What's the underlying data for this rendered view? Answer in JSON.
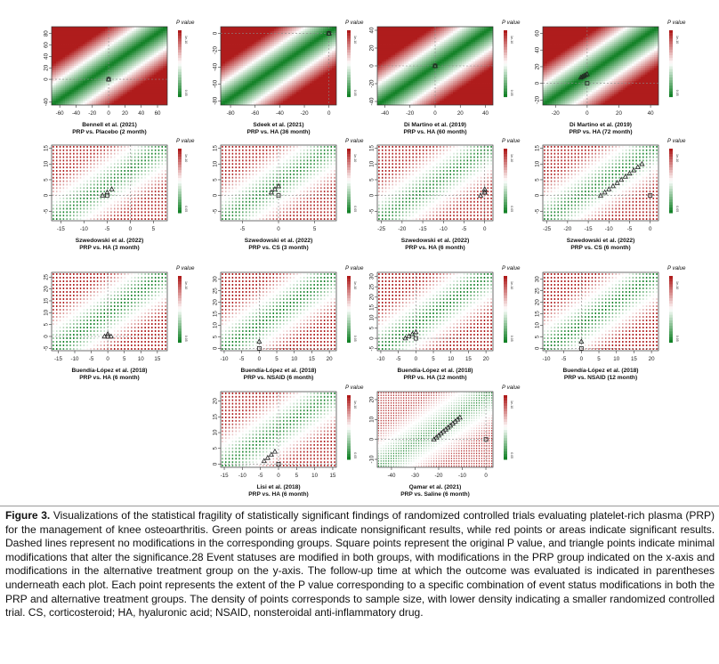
{
  "legend_title": "P value",
  "legend_ticks": {
    "top": "1e-10",
    "bottom": "0.05"
  },
  "chart_data": [
    {
      "type": "heatmap",
      "style": "smooth",
      "title": "Bennell et al. (2021)",
      "subtitle": "PRP vs. Placebo (2 month)",
      "xticks": [
        -60,
        -40,
        -20,
        0,
        20,
        40,
        60
      ],
      "xlim": [
        -70,
        72
      ],
      "yticks": [
        -40,
        0,
        20,
        40,
        60,
        80
      ],
      "ylim": [
        -45,
        92
      ],
      "band_dir": 1,
      "band_w": 0.08,
      "sq": [
        0,
        0
      ],
      "tri": [
        [
          0,
          0
        ]
      ]
    },
    {
      "type": "heatmap",
      "style": "smooth",
      "title": "Sdeek et al. (2021)",
      "subtitle": "PRP vs. HA (36 month)",
      "xticks": [
        -80,
        -60,
        -40,
        -20,
        0
      ],
      "xlim": [
        -88,
        6
      ],
      "yticks": [
        -80,
        -60,
        -40,
        -20,
        0
      ],
      "ylim": [
        -85,
        8
      ],
      "band_dir": 1,
      "band_w": 0.08,
      "sq": [
        0,
        0
      ],
      "tri": [
        [
          0,
          0
        ]
      ]
    },
    {
      "type": "heatmap",
      "style": "smooth",
      "title": "Di Martino et al. (2019)",
      "subtitle": "PRP vs. HA (60 month)",
      "xticks": [
        -40,
        -20,
        0,
        20,
        40
      ],
      "xlim": [
        -46,
        46
      ],
      "yticks": [
        -40,
        -20,
        0,
        20,
        40
      ],
      "ylim": [
        -44,
        44
      ],
      "band_dir": 1,
      "band_w": 0.08,
      "sq": [
        0,
        0
      ],
      "tri": [
        [
          0,
          0
        ]
      ]
    },
    {
      "type": "heatmap",
      "style": "smooth",
      "title": "Di Martino et al. (2019)",
      "subtitle": "PRP vs. HA (72 month)",
      "xticks": [
        -20,
        0,
        20,
        40
      ],
      "xlim": [
        -28,
        45
      ],
      "yticks": [
        -20,
        0,
        20,
        40,
        60
      ],
      "ylim": [
        -26,
        68
      ],
      "band_dir": 1,
      "band_w": 0.08,
      "sq": [
        0,
        0
      ],
      "tri": [
        [
          -4,
          7
        ],
        [
          -3,
          8
        ],
        [
          -2,
          9
        ],
        [
          -1,
          10
        ],
        [
          0,
          11
        ]
      ]
    },
    {
      "type": "heatmap",
      "style": "dots",
      "title": "Szwedowski et al. (2022)",
      "subtitle": "PRP vs. HA (3 month)",
      "xticks": [
        -15,
        -10,
        -5,
        0,
        5
      ],
      "xlim": [
        -17,
        8
      ],
      "yticks": [
        -5,
        0,
        5,
        10,
        15
      ],
      "ylim": [
        -8,
        16
      ],
      "band_dir": 1,
      "band_w": 0.12,
      "sq": [
        -5,
        0
      ],
      "tri": [
        [
          -6,
          0
        ],
        [
          -5,
          1
        ],
        [
          -4,
          2
        ]
      ]
    },
    {
      "type": "heatmap",
      "style": "dots",
      "title": "Szwedowski et al. (2022)",
      "subtitle": "PRP vs. CS (3 month)",
      "xticks": [
        -5,
        0,
        5
      ],
      "xlim": [
        -8,
        8
      ],
      "yticks": [
        -5,
        0,
        5,
        10,
        15
      ],
      "ylim": [
        -8,
        16
      ],
      "band_dir": 1,
      "band_w": 0.12,
      "sq": [
        0,
        0
      ],
      "tri": [
        [
          -1,
          1
        ],
        [
          -0.5,
          2
        ],
        [
          0,
          3
        ]
      ]
    },
    {
      "type": "heatmap",
      "style": "dots",
      "title": "Szwedowski et al. (2022)",
      "subtitle": "PRP vs. HA (6 month)",
      "xticks": [
        -25,
        -20,
        -15,
        -10,
        -5,
        0
      ],
      "xlim": [
        -26,
        2
      ],
      "yticks": [
        -5,
        0,
        5,
        10,
        15
      ],
      "ylim": [
        -8,
        16
      ],
      "band_dir": 1,
      "band_w": 0.12,
      "sq": [
        0,
        1
      ],
      "tri": [
        [
          -1,
          0
        ],
        [
          0,
          1
        ],
        [
          0,
          2
        ]
      ]
    },
    {
      "type": "heatmap",
      "style": "dots",
      "title": "Szwedowski et al. (2022)",
      "subtitle": "PRP vs. CS (6 month)",
      "xticks": [
        -25,
        -20,
        -15,
        -10,
        -5,
        0
      ],
      "xlim": [
        -26,
        2
      ],
      "yticks": [
        -5,
        0,
        5,
        10,
        15
      ],
      "ylim": [
        -8,
        16
      ],
      "band_dir": 1,
      "band_w": 0.12,
      "sq": [
        0,
        0
      ],
      "tri": [
        [
          -12,
          0
        ],
        [
          -11,
          1
        ],
        [
          -10,
          2
        ],
        [
          -9,
          3
        ],
        [
          -8,
          4
        ],
        [
          -7,
          5
        ],
        [
          -6,
          6
        ],
        [
          -5,
          7
        ],
        [
          -4,
          8
        ],
        [
          -3,
          9
        ],
        [
          -2,
          10
        ]
      ]
    },
    {
      "type": "heatmap",
      "style": "dots",
      "title": "Buendía-López et al. (2018)",
      "subtitle": "PRP vs. HA (6 month)",
      "xticks": [
        -15,
        -10,
        -5,
        0,
        5,
        10,
        15
      ],
      "xlim": [
        -17,
        18
      ],
      "yticks": [
        -5,
        0,
        5,
        10,
        15,
        20,
        25
      ],
      "ylim": [
        -6,
        27
      ],
      "band_dir": 1,
      "band_w": 0.12,
      "sq": [
        0,
        0
      ],
      "tri": [
        [
          -1,
          0
        ],
        [
          0,
          1
        ],
        [
          1,
          0
        ]
      ]
    },
    {
      "type": "heatmap",
      "style": "dots",
      "title": "Buendía-López et al. (2018)",
      "subtitle": "PRP vs. NSAID (6 month)",
      "xticks": [
        -10,
        -5,
        0,
        5,
        10,
        15,
        20
      ],
      "xlim": [
        -11,
        22
      ],
      "yticks": [
        0,
        5,
        10,
        15,
        20,
        25,
        30
      ],
      "ylim": [
        -1,
        33
      ],
      "band_dir": 1,
      "band_w": 0.12,
      "sq": [
        0,
        0
      ],
      "tri": [
        [
          0,
          3
        ]
      ]
    },
    {
      "type": "heatmap",
      "style": "dots",
      "title": "Buendía-López et al. (2018)",
      "subtitle": "PRP vs. HA (12 month)",
      "xticks": [
        -10,
        -5,
        0,
        5,
        10,
        15,
        20
      ],
      "xlim": [
        -11,
        22
      ],
      "yticks": [
        -5,
        0,
        5,
        10,
        15,
        20,
        25,
        30
      ],
      "ylim": [
        -6,
        32
      ],
      "band_dir": 1,
      "band_w": 0.12,
      "sq": [
        0,
        0
      ],
      "tri": [
        [
          -3,
          0
        ],
        [
          -2,
          1
        ],
        [
          -1,
          2
        ],
        [
          0,
          3
        ]
      ]
    },
    {
      "type": "heatmap",
      "style": "dots",
      "title": "Buendía-López et al. (2018)",
      "subtitle": "PRP vs. NSAID (12 month)",
      "xticks": [
        -10,
        -5,
        0,
        5,
        10,
        15,
        20
      ],
      "xlim": [
        -11,
        22
      ],
      "yticks": [
        0,
        5,
        10,
        15,
        20,
        25,
        30
      ],
      "ylim": [
        -1,
        33
      ],
      "band_dir": 1,
      "band_w": 0.12,
      "sq": [
        0,
        0
      ],
      "tri": [
        [
          0,
          3
        ]
      ]
    },
    {
      "type": "heatmap",
      "style": "dots",
      "title": "Lisi et al. (2018)",
      "subtitle": "PRP vs. HA (6 month)",
      "xticks": [
        -15,
        -10,
        -5,
        0,
        5,
        10,
        15
      ],
      "xlim": [
        -16,
        16
      ],
      "yticks": [
        0,
        5,
        10,
        15,
        20
      ],
      "ylim": [
        -1,
        23
      ],
      "band_dir": 1,
      "band_w": 0.12,
      "sq": [
        0,
        0
      ],
      "tri": [
        [
          -4,
          1
        ],
        [
          -3,
          2
        ],
        [
          -2,
          3
        ],
        [
          -1,
          4
        ]
      ]
    },
    {
      "type": "heatmap",
      "style": "dots",
      "title": "Qamar et al. (2021)",
      "subtitle": "PRP vs. Saline (6 month)",
      "xticks": [
        -40,
        -30,
        -20,
        -10,
        0
      ],
      "xlim": [
        -46,
        3
      ],
      "yticks": [
        -10,
        0,
        10,
        20
      ],
      "ylim": [
        -14,
        24
      ],
      "band_dir": 1,
      "band_w": 0.1,
      "sq": [
        0,
        0
      ],
      "tri": [
        [
          -22,
          0
        ],
        [
          -21,
          1
        ],
        [
          -20,
          2
        ],
        [
          -19,
          3
        ],
        [
          -18,
          4
        ],
        [
          -17,
          5
        ],
        [
          -16,
          6
        ],
        [
          -15,
          7
        ],
        [
          -14,
          8
        ],
        [
          -13,
          9
        ],
        [
          -12,
          10
        ],
        [
          -11,
          11
        ]
      ]
    }
  ],
  "caption": {
    "label": "Figure 3.",
    "text": "Visualizations of the statistical fragility of statistically significant findings of randomized controlled trials evaluating platelet-rich plasma (PRP) for the management of knee osteoarthritis. Green points or areas indicate nonsignificant results, while red points or areas indicate significant results. Dashed lines represent no modifications in the corresponding groups. Square points represent the original P value, and triangle points indicate minimal modifications that alter the significance.28 Event statuses are modified in both groups, with modifications in the PRP group indicated on the x-axis and modifications in the alternative treatment group on the y-axis. The follow-up time at which the outcome was evaluated is indicated in parentheses underneath each plot. Each point represents the extent of the P value corresponding to a specific combination of event status modifications in both the PRP and alternative treatment groups. The density of points corresponds to sample size, with lower density indicating a smaller randomized controlled trial. CS, corticosteroid; HA, hyaluronic acid; NSAID, nonsteroidal anti-inflammatory drug."
  }
}
